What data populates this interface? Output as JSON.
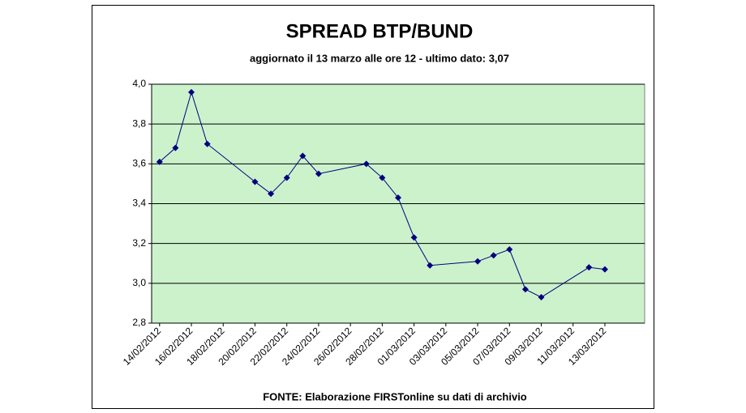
{
  "chart_data": {
    "type": "line",
    "title": "SPREAD BTP/BUND",
    "subtitle": "aggiornato il 13 marzo alle ore 12 - ultimo dato: 3,07",
    "source": "FONTE: Elaborazione FIRSTonline su dati di archivio",
    "x": [
      "14/02/2012",
      "15/02/2012",
      "16/02/2012",
      "17/02/2012",
      "20/02/2012",
      "21/02/2012",
      "22/02/2012",
      "23/02/2012",
      "24/02/2012",
      "27/02/2012",
      "28/02/2012",
      "29/02/2012",
      "01/03/2012",
      "02/03/2012",
      "05/03/2012",
      "06/03/2012",
      "07/03/2012",
      "08/03/2012",
      "09/03/2012",
      "12/03/2012",
      "13/03/2012"
    ],
    "series": [
      {
        "color": "#000080",
        "values": [
          3.61,
          3.68,
          3.96,
          3.7,
          3.51,
          3.45,
          3.53,
          3.64,
          3.55,
          3.6,
          3.53,
          3.43,
          3.23,
          3.09,
          3.11,
          3.14,
          3.17,
          2.97,
          2.93,
          3.08,
          3.07
        ]
      }
    ],
    "xlim": [
      "14/02/2012",
      "15/03/2012"
    ],
    "xticks": [
      "14/02/2012",
      "16/02/2012",
      "18/02/2012",
      "20/02/2012",
      "22/02/2012",
      "24/02/2012",
      "26/02/2012",
      "28/02/2012",
      "01/03/2012",
      "03/03/2012",
      "05/03/2012",
      "07/03/2012",
      "09/03/2012",
      "11/03/2012",
      "13/03/2012"
    ],
    "ylim": [
      2.8,
      4.0
    ],
    "yticks": [
      {
        "value": 2.8,
        "label": "2,8"
      },
      {
        "value": 3.0,
        "label": "3,0"
      },
      {
        "value": 3.2,
        "label": "3,2"
      },
      {
        "value": 3.4,
        "label": "3,4"
      },
      {
        "value": 3.6,
        "label": "3,6"
      },
      {
        "value": 3.8,
        "label": "3,8"
      },
      {
        "value": 4.0,
        "label": "4,0"
      }
    ],
    "grid": true,
    "plot_background": "#ccf2cc"
  }
}
